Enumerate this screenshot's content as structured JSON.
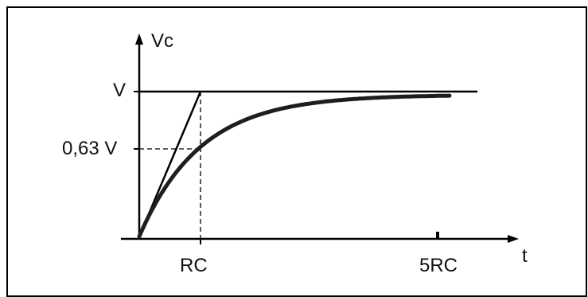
{
  "diagram": {
    "axes": {
      "y_label": "Vc",
      "x_label": "t"
    },
    "levels": {
      "v_label": "V",
      "v63_label": "0,63 V"
    },
    "time_marks": {
      "rc_label": "RC",
      "five_rc_label": "5RC"
    },
    "curve": {
      "type": "exponential-charge",
      "asymptote_fraction": 1.0,
      "tau_fraction": 0.63,
      "tau_multiple_at_end": 5
    },
    "colors": {
      "line": "#000000",
      "curve": "#1e1e1e",
      "background": "#ffffff"
    }
  }
}
